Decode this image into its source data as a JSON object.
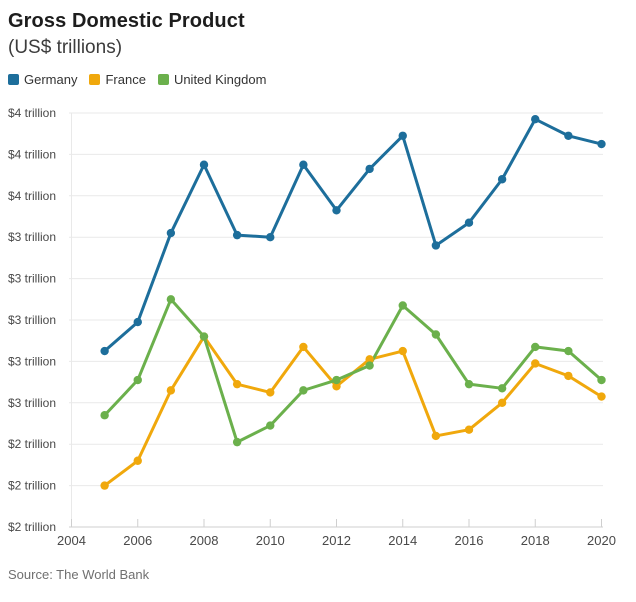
{
  "header": {
    "title": "Gross Domestic Product",
    "subtitle": "(US$ trillions)"
  },
  "legend": [
    {
      "label": "Germany",
      "color": "#1d6e9b"
    },
    {
      "label": "France",
      "color": "#f0a80c"
    },
    {
      "label": "United Kingdom",
      "color": "#6bb04c"
    }
  ],
  "footer": {
    "source": "Source: The World Bank"
  },
  "colors": {
    "background": "#ffffff",
    "grid": "#e9e9e9",
    "axis": "#cfcfcf",
    "axis_text": "#494949",
    "title": "#1d1d1d",
    "subtitle": "#3c3c3c",
    "source": "#707070"
  },
  "chart_data": {
    "type": "line",
    "title": "Gross Domestic Product",
    "subtitle": "(US$ trillions)",
    "source": "Source: The World Bank",
    "xlabel": "",
    "ylabel": "US$ trillions",
    "x": [
      2005,
      2006,
      2007,
      2008,
      2009,
      2010,
      2011,
      2012,
      2013,
      2014,
      2015,
      2016,
      2017,
      2018,
      2019,
      2020
    ],
    "series": [
      {
        "name": "Germany",
        "color": "#1d6e9b",
        "values": [
          2.85,
          2.99,
          3.42,
          3.75,
          3.41,
          3.4,
          3.75,
          3.53,
          3.73,
          3.89,
          3.36,
          3.47,
          3.68,
          3.97,
          3.89,
          3.85
        ]
      },
      {
        "name": "France",
        "color": "#f0a80c",
        "values": [
          2.2,
          2.32,
          2.66,
          2.92,
          2.69,
          2.65,
          2.87,
          2.68,
          2.81,
          2.85,
          2.44,
          2.47,
          2.6,
          2.79,
          2.73,
          2.63
        ]
      },
      {
        "name": "United Kingdom",
        "color": "#6bb04c",
        "values": [
          2.54,
          2.71,
          3.1,
          2.92,
          2.41,
          2.49,
          2.66,
          2.71,
          2.78,
          3.07,
          2.93,
          2.69,
          2.67,
          2.87,
          2.85,
          2.71
        ]
      }
    ],
    "xlim": [
      2004,
      2020
    ],
    "ylim": [
      2.0,
      4.0
    ],
    "xticks": [
      2004,
      2006,
      2008,
      2010,
      2012,
      2014,
      2016,
      2018,
      2020
    ],
    "yticks": [
      {
        "value": 4.0,
        "label": "$4 trillion"
      },
      {
        "value": 3.8,
        "label": "$4 trillion"
      },
      {
        "value": 3.6,
        "label": "$4 trillion"
      },
      {
        "value": 3.4,
        "label": "$3 trillion"
      },
      {
        "value": 3.2,
        "label": "$3 trillion"
      },
      {
        "value": 3.0,
        "label": "$3 trillion"
      },
      {
        "value": 2.8,
        "label": "$3 trillion"
      },
      {
        "value": 2.6,
        "label": "$3 trillion"
      },
      {
        "value": 2.4,
        "label": "$2 trillion"
      },
      {
        "value": 2.2,
        "label": "$2 trillion"
      },
      {
        "value": 2.0,
        "label": "$2 trillion"
      }
    ],
    "grid": true,
    "legend_position": "top",
    "markers": true
  }
}
